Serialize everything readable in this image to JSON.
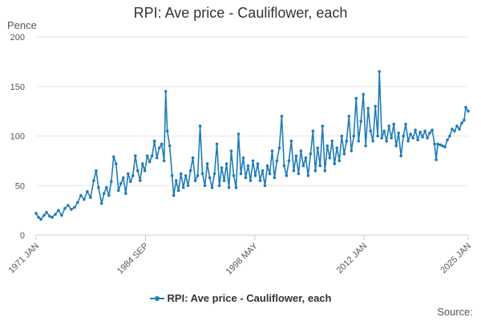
{
  "chart_data": {
    "type": "line",
    "title": "RPI: Ave price - Cauliflower, each",
    "ylabel": "Pence",
    "xlabel": "",
    "ylim": [
      0,
      200
    ],
    "y_ticks": [
      0,
      50,
      100,
      150,
      200
    ],
    "x_ticks": [
      "1971 JAN",
      "1984 SEP",
      "1998 MAY",
      "2012 JAN",
      "2025 JAN"
    ],
    "x_tick_years": [
      1971.0,
      1984.67,
      1998.33,
      2012.0,
      2025.0
    ],
    "xlim": [
      1971.0,
      2025.0
    ],
    "grid": true,
    "legend_position": "bottom",
    "source": "Source:",
    "series": [
      {
        "name": "RPI: Ave price - Cauliflower, each",
        "color": "#1f7cb6",
        "points": [
          [
            1971.0,
            22
          ],
          [
            1971.3,
            18
          ],
          [
            1971.6,
            16
          ],
          [
            1972.0,
            20
          ],
          [
            1972.3,
            23
          ],
          [
            1972.7,
            19
          ],
          [
            1973.0,
            18
          ],
          [
            1973.4,
            21
          ],
          [
            1973.8,
            25
          ],
          [
            1974.2,
            20
          ],
          [
            1974.6,
            27
          ],
          [
            1975.0,
            30
          ],
          [
            1975.4,
            26
          ],
          [
            1975.8,
            28
          ],
          [
            1976.2,
            33
          ],
          [
            1976.6,
            40
          ],
          [
            1977.0,
            36
          ],
          [
            1977.4,
            44
          ],
          [
            1977.8,
            38
          ],
          [
            1978.2,
            55
          ],
          [
            1978.5,
            65
          ],
          [
            1978.8,
            48
          ],
          [
            1979.2,
            32
          ],
          [
            1979.5,
            42
          ],
          [
            1979.8,
            48
          ],
          [
            1980.1,
            40
          ],
          [
            1980.4,
            54
          ],
          [
            1980.7,
            79
          ],
          [
            1981.0,
            72
          ],
          [
            1981.3,
            45
          ],
          [
            1981.6,
            52
          ],
          [
            1981.9,
            58
          ],
          [
            1982.2,
            42
          ],
          [
            1982.5,
            62
          ],
          [
            1982.8,
            54
          ],
          [
            1983.1,
            60
          ],
          [
            1983.4,
            80
          ],
          [
            1983.7,
            65
          ],
          [
            1984.0,
            55
          ],
          [
            1984.3,
            72
          ],
          [
            1984.6,
            65
          ],
          [
            1984.9,
            80
          ],
          [
            1985.2,
            74
          ],
          [
            1985.5,
            80
          ],
          [
            1985.8,
            95
          ],
          [
            1986.1,
            78
          ],
          [
            1986.4,
            88
          ],
          [
            1986.7,
            92
          ],
          [
            1987.0,
            75
          ],
          [
            1987.2,
            145
          ],
          [
            1987.4,
            105
          ],
          [
            1987.7,
            90
          ],
          [
            1988.0,
            60
          ],
          [
            1988.2,
            40
          ],
          [
            1988.5,
            55
          ],
          [
            1988.8,
            45
          ],
          [
            1989.1,
            62
          ],
          [
            1989.4,
            48
          ],
          [
            1989.7,
            60
          ],
          [
            1990.0,
            50
          ],
          [
            1990.3,
            65
          ],
          [
            1990.6,
            78
          ],
          [
            1990.9,
            55
          ],
          [
            1991.2,
            60
          ],
          [
            1991.5,
            110
          ],
          [
            1991.8,
            62
          ],
          [
            1992.1,
            50
          ],
          [
            1992.4,
            72
          ],
          [
            1992.7,
            58
          ],
          [
            1993.0,
            48
          ],
          [
            1993.3,
            62
          ],
          [
            1993.6,
            92
          ],
          [
            1993.9,
            50
          ],
          [
            1994.2,
            68
          ],
          [
            1994.5,
            55
          ],
          [
            1994.8,
            72
          ],
          [
            1995.1,
            48
          ],
          [
            1995.4,
            85
          ],
          [
            1995.7,
            60
          ],
          [
            1996.0,
            48
          ],
          [
            1996.3,
            102
          ],
          [
            1996.6,
            62
          ],
          [
            1996.9,
            78
          ],
          [
            1997.2,
            58
          ],
          [
            1997.5,
            70
          ],
          [
            1997.8,
            55
          ],
          [
            1998.1,
            75
          ],
          [
            1998.4,
            60
          ],
          [
            1998.7,
            72
          ],
          [
            1999.0,
            55
          ],
          [
            1999.3,
            65
          ],
          [
            1999.6,
            50
          ],
          [
            1999.9,
            70
          ],
          [
            2000.2,
            62
          ],
          [
            2000.5,
            85
          ],
          [
            2000.8,
            58
          ],
          [
            2001.1,
            75
          ],
          [
            2001.4,
            88
          ],
          [
            2001.7,
            120
          ],
          [
            2002.0,
            70
          ],
          [
            2002.3,
            60
          ],
          [
            2002.6,
            75
          ],
          [
            2002.9,
            95
          ],
          [
            2003.2,
            65
          ],
          [
            2003.5,
            80
          ],
          [
            2003.8,
            62
          ],
          [
            2004.1,
            85
          ],
          [
            2004.4,
            70
          ],
          [
            2004.7,
            78
          ],
          [
            2005.0,
            60
          ],
          [
            2005.3,
            82
          ],
          [
            2005.6,
            105
          ],
          [
            2005.9,
            65
          ],
          [
            2006.2,
            88
          ],
          [
            2006.5,
            70
          ],
          [
            2006.8,
            110
          ],
          [
            2007.1,
            65
          ],
          [
            2007.4,
            90
          ],
          [
            2007.7,
            78
          ],
          [
            2008.0,
            95
          ],
          [
            2008.3,
            72
          ],
          [
            2008.6,
            88
          ],
          [
            2008.9,
            75
          ],
          [
            2009.2,
            100
          ],
          [
            2009.5,
            82
          ],
          [
            2009.8,
            95
          ],
          [
            2010.1,
            120
          ],
          [
            2010.4,
            85
          ],
          [
            2010.7,
            100
          ],
          [
            2011.0,
            138
          ],
          [
            2011.3,
            95
          ],
          [
            2011.6,
            115
          ],
          [
            2011.9,
            142
          ],
          [
            2012.2,
            90
          ],
          [
            2012.5,
            128
          ],
          [
            2012.8,
            105
          ],
          [
            2013.1,
            95
          ],
          [
            2013.4,
            130
          ],
          [
            2013.7,
            100
          ],
          [
            2013.9,
            165
          ],
          [
            2014.2,
            98
          ],
          [
            2014.5,
            105
          ],
          [
            2014.8,
            95
          ],
          [
            2015.1,
            110
          ],
          [
            2015.4,
            98
          ],
          [
            2015.7,
            112
          ],
          [
            2016.0,
            90
          ],
          [
            2016.3,
            103
          ],
          [
            2016.6,
            80
          ],
          [
            2016.9,
            100
          ],
          [
            2017.2,
            112
          ],
          [
            2017.5,
            95
          ],
          [
            2017.8,
            102
          ],
          [
            2018.1,
            98
          ],
          [
            2018.4,
            106
          ],
          [
            2018.7,
            96
          ],
          [
            2019.0,
            104
          ],
          [
            2019.3,
            99
          ],
          [
            2019.6,
            105
          ],
          [
            2019.9,
            98
          ],
          [
            2020.2,
            103
          ],
          [
            2020.5,
            106
          ],
          [
            2020.8,
            92
          ],
          [
            2021.0,
            76
          ],
          [
            2021.2,
            92
          ],
          [
            2021.5,
            91
          ],
          [
            2021.8,
            90
          ],
          [
            2022.1,
            89
          ],
          [
            2022.4,
            96
          ],
          [
            2022.7,
            100
          ],
          [
            2023.0,
            107
          ],
          [
            2023.3,
            105
          ],
          [
            2023.6,
            110
          ],
          [
            2023.9,
            107
          ],
          [
            2024.2,
            113
          ],
          [
            2024.5,
            116
          ],
          [
            2024.7,
            129
          ],
          [
            2025.0,
            125
          ]
        ]
      }
    ]
  }
}
